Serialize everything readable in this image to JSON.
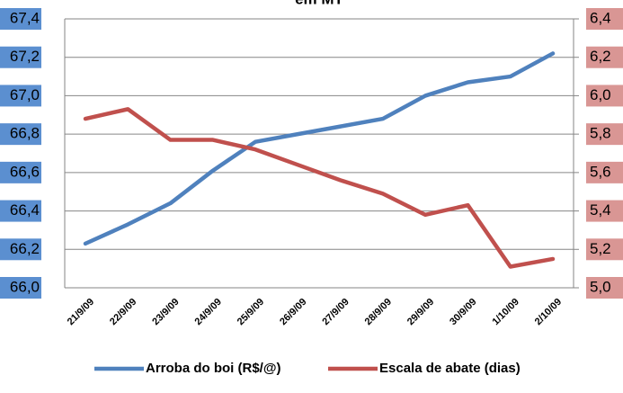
{
  "chart_data": {
    "type": "line",
    "title": "em MT",
    "categories": [
      "21/9/09",
      "22/9/09",
      "23/9/09",
      "24/9/09",
      "25/9/09",
      "26/9/09",
      "27/9/09",
      "28/9/09",
      "29/9/09",
      "30/9/09",
      "1/10/09",
      "2/10/09"
    ],
    "series": [
      {
        "name": "Arroba do boi (R$/@)",
        "color": "#4f81bd",
        "values": [
          66.23,
          66.33,
          66.44,
          66.61,
          66.76,
          66.8,
          66.84,
          66.88,
          67.0,
          67.07,
          67.1,
          67.22
        ]
      },
      {
        "name": "Escala de abate (dias)",
        "color": "#c0504d",
        "axis": "y2",
        "values": [
          5.88,
          5.93,
          5.77,
          5.77,
          5.72,
          5.64,
          5.56,
          5.49,
          5.38,
          5.43,
          5.11,
          5.15
        ]
      }
    ],
    "ylim": [
      66.0,
      67.4
    ],
    "yticks": [
      {
        "value": 66.0,
        "label": "66,0"
      },
      {
        "value": 66.2,
        "label": "66,2"
      },
      {
        "value": 66.4,
        "label": "66,4"
      },
      {
        "value": 66.6,
        "label": "66,6"
      },
      {
        "value": 66.8,
        "label": "66,8"
      },
      {
        "value": 67.0,
        "label": "67,0"
      },
      {
        "value": 67.2,
        "label": "67,2"
      },
      {
        "value": 67.4,
        "label": "67,4"
      }
    ],
    "y2lim": [
      5.0,
      6.4
    ],
    "y2ticks": [
      {
        "value": 5.0,
        "label": "5,0"
      },
      {
        "value": 5.2,
        "label": "5,2"
      },
      {
        "value": 5.4,
        "label": "5,4"
      },
      {
        "value": 5.6,
        "label": "5,6"
      },
      {
        "value": 5.8,
        "label": "5,8"
      },
      {
        "value": 6.0,
        "label": "6,0"
      },
      {
        "value": 6.2,
        "label": "6,2"
      },
      {
        "value": 6.4,
        "label": "6,4"
      }
    ],
    "grid": true,
    "legend": "bottom"
  }
}
